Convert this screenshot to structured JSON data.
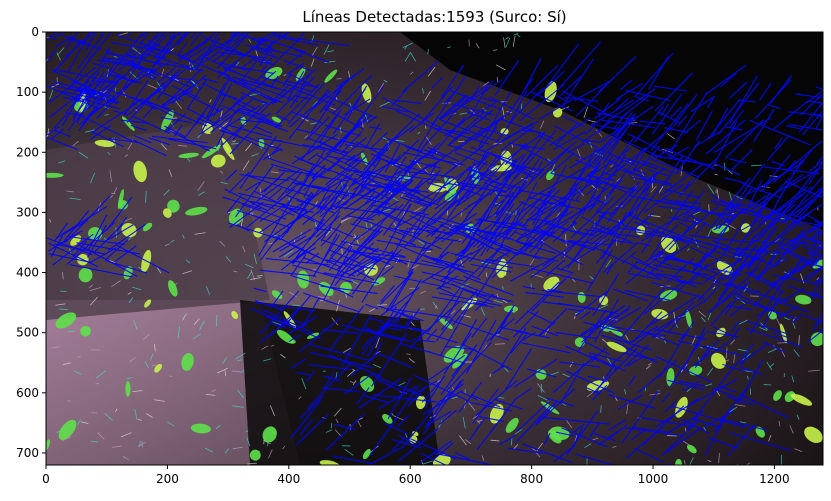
{
  "figure": {
    "title": "Líneas Detectadas:1593 (Surco: Sí)"
  },
  "image": {
    "description_icon": "field-image-with-detected-lines",
    "colors": {
      "soil_dark": "#1a1416",
      "soil_light": "#8a7484",
      "soil_pink": "#c6a2c4",
      "plant_green": "#5ee04a",
      "plant_yellow": "#c8f24a",
      "cyan_edges": "#40e0d0",
      "background_black": "#050505",
      "detected_line": "#0000ff"
    }
  },
  "axes": {
    "x": {
      "min": 0,
      "max": 1280,
      "ticks": [
        0,
        200,
        400,
        600,
        800,
        1000,
        1200
      ],
      "tick_labels": [
        "0",
        "200",
        "400",
        "600",
        "800",
        "1000",
        "1200"
      ]
    },
    "y": {
      "min": 0,
      "max": 720,
      "inverted": true,
      "ticks": [
        0,
        100,
        200,
        300,
        400,
        500,
        600,
        700
      ],
      "tick_labels": [
        "0",
        "100",
        "200",
        "300",
        "400",
        "500",
        "600",
        "700"
      ]
    }
  }
}
